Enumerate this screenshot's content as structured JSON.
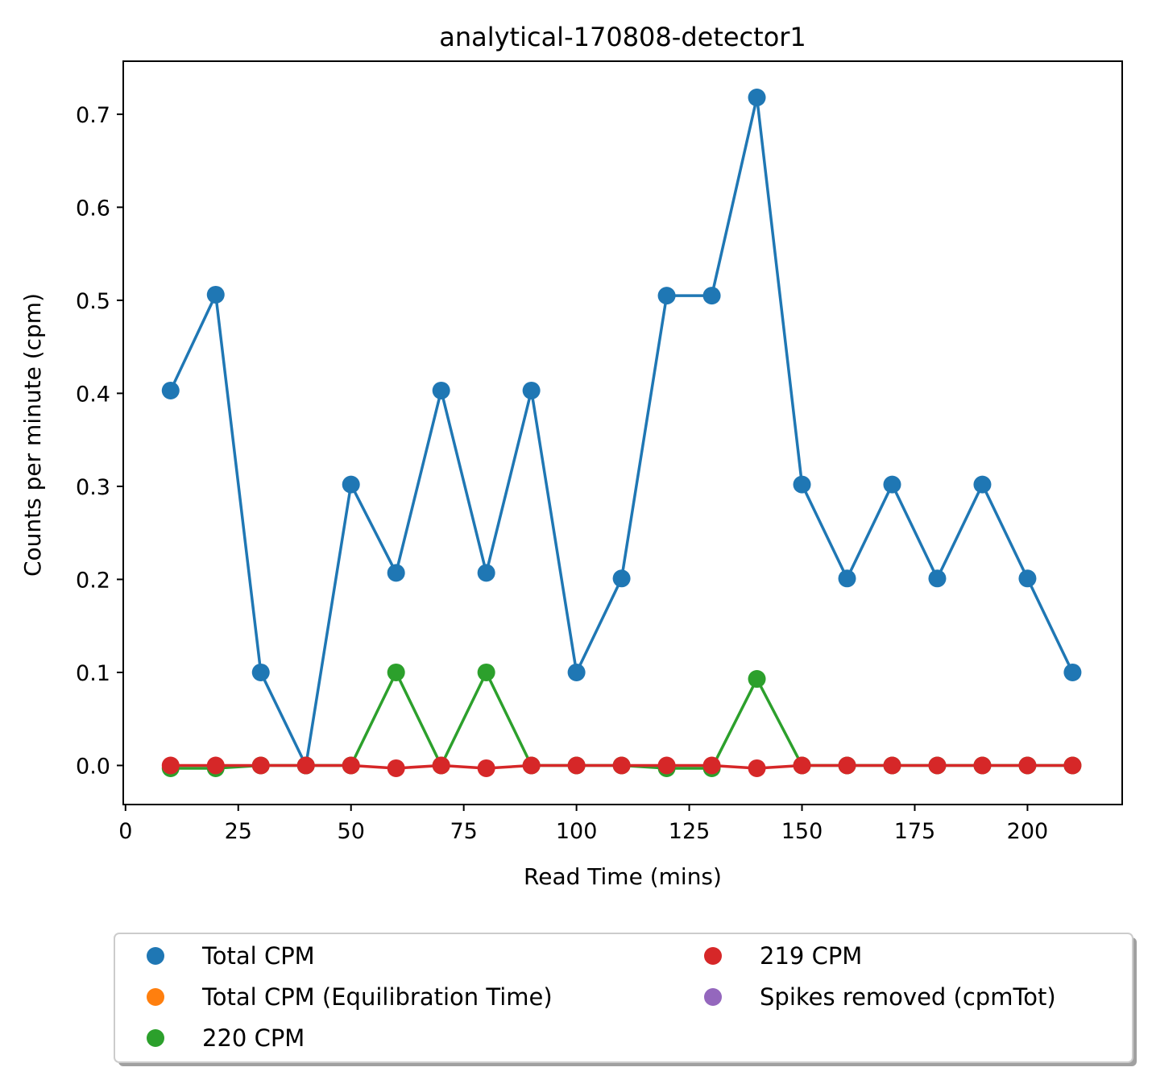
{
  "chart_data": {
    "type": "line",
    "title": "analytical-170808-detector1",
    "xlabel": "Read Time (mins)",
    "ylabel": "Counts per minute (cpm)",
    "xlim": [
      -0.5,
      221
    ],
    "ylim": [
      -0.042,
      0.757
    ],
    "xticks": [
      0,
      25,
      50,
      75,
      100,
      125,
      150,
      175,
      200
    ],
    "yticks": [
      0.0,
      0.1,
      0.2,
      0.3,
      0.4,
      0.5,
      0.6,
      0.7
    ],
    "ytick_labels": [
      "0.0",
      "0.1",
      "0.2",
      "0.3",
      "0.4",
      "0.5",
      "0.6",
      "0.7"
    ],
    "x": [
      10,
      20,
      30,
      40,
      50,
      60,
      70,
      80,
      90,
      100,
      110,
      120,
      130,
      140,
      150,
      160,
      170,
      180,
      190,
      200,
      210
    ],
    "series": [
      {
        "name": "Total CPM",
        "color": "#1f77b4",
        "values": [
          0.403,
          0.506,
          0.1,
          0.0,
          0.302,
          0.207,
          0.403,
          0.207,
          0.403,
          0.1,
          0.201,
          0.505,
          0.505,
          0.718,
          0.302,
          0.201,
          0.302,
          0.201,
          0.302,
          0.201,
          0.1
        ]
      },
      {
        "name": "220 CPM",
        "color": "#2ca02c",
        "values": [
          -0.003,
          -0.003,
          0.0,
          0.0,
          0.0,
          0.1,
          0.0,
          0.1,
          0.0,
          0.0,
          0.0,
          -0.003,
          -0.003,
          0.093,
          0.0,
          0.0,
          0.0,
          0.0,
          0.0,
          0.0,
          0.0
        ]
      },
      {
        "name": "219 CPM",
        "color": "#d62728",
        "values": [
          0.0,
          0.0,
          0.0,
          0.0,
          0.0,
          -0.003,
          0.0,
          -0.003,
          0.0,
          0.0,
          0.0,
          0.0,
          0.0,
          -0.003,
          0.0,
          0.0,
          0.0,
          0.0,
          0.0,
          0.0,
          0.0
        ]
      }
    ],
    "legend": {
      "placement": "below",
      "columns": 2,
      "entries": [
        {
          "label": "Total CPM",
          "color": "#1f77b4"
        },
        {
          "label": "Total CPM (Equilibration Time)",
          "color": "#ff7f0e"
        },
        {
          "label": "220 CPM",
          "color": "#2ca02c"
        },
        {
          "label": "219 CPM",
          "color": "#d62728"
        },
        {
          "label": "Spikes removed (cpmTot)",
          "color": "#9467bd"
        }
      ]
    },
    "grid": false
  }
}
